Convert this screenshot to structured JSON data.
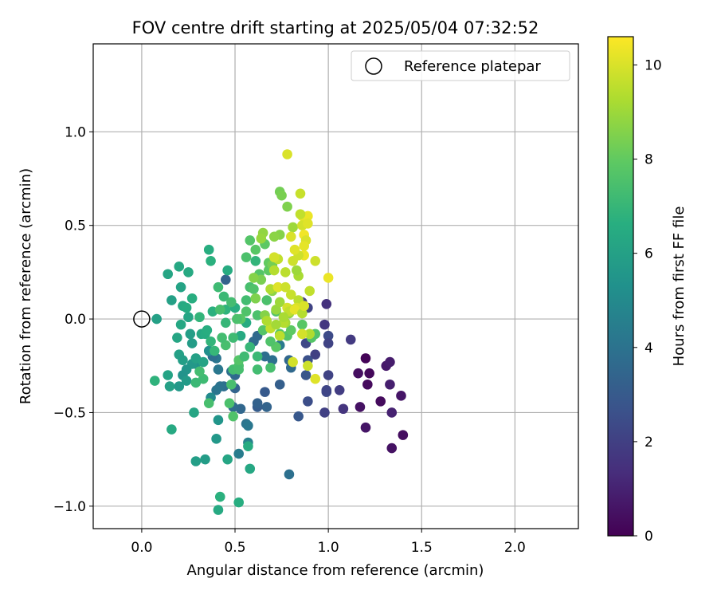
{
  "chart_data": {
    "type": "scatter",
    "title": "FOV centre drift starting at 2025/05/04 07:32:52",
    "xlabel": "Angular distance from reference (arcmin)",
    "ylabel": "Rotation from reference (arcmin)",
    "xlim": [
      -0.26,
      2.34
    ],
    "ylim": [
      -1.12,
      1.47
    ],
    "xticks": [
      0.0,
      0.5,
      1.0,
      1.5,
      2.0
    ],
    "xtick_labels": [
      "0.0",
      "0.5",
      "1.0",
      "1.5",
      "2.0"
    ],
    "yticks": [
      -1.0,
      -0.5,
      0.0,
      0.5,
      1.0
    ],
    "ytick_labels": [
      "−1.0",
      "−0.5",
      "0.0",
      "0.5",
      "1.0"
    ],
    "grid": true,
    "legend": {
      "position": "top-right",
      "entries": [
        "Reference platepar"
      ]
    },
    "reference": {
      "x": 0.0,
      "y": 0.0,
      "label": "Reference platepar"
    },
    "colorbar": {
      "label": "Hours from first FF file",
      "range": [
        0,
        10.6
      ],
      "ticks": [
        0,
        2,
        4,
        6,
        8,
        10
      ],
      "tick_labels": [
        "0",
        "2",
        "4",
        "6",
        "8",
        "10"
      ],
      "colormap": "viridis"
    },
    "points": [
      [
        1.2,
        -0.21,
        0.1
      ],
      [
        1.22,
        -0.29,
        0.2
      ],
      [
        1.21,
        -0.35,
        0.3
      ],
      [
        1.16,
        -0.29,
        0.4
      ],
      [
        1.17,
        -0.47,
        0.5
      ],
      [
        1.2,
        -0.58,
        0.6
      ],
      [
        1.28,
        -0.44,
        0.3
      ],
      [
        1.31,
        -0.25,
        0.7
      ],
      [
        1.33,
        -0.23,
        0.8
      ],
      [
        1.33,
        -0.35,
        0.9
      ],
      [
        1.34,
        -0.5,
        1.0
      ],
      [
        1.34,
        -0.69,
        0.5
      ],
      [
        1.39,
        -0.41,
        0.6
      ],
      [
        1.4,
        -0.62,
        0.4
      ],
      [
        1.12,
        -0.11,
        1.8
      ],
      [
        1.08,
        -0.48,
        1.6
      ],
      [
        1.06,
        -0.38,
        1.9
      ],
      [
        1.0,
        -0.3,
        2.1
      ],
      [
        0.99,
        -0.39,
        2.3
      ],
      [
        0.98,
        -0.5,
        2.0
      ],
      [
        0.99,
        -0.38,
        2.2
      ],
      [
        0.98,
        -0.03,
        1.7
      ],
      [
        0.99,
        0.08,
        1.5
      ],
      [
        1.0,
        -0.09,
        2.4
      ],
      [
        1.0,
        -0.13,
        2.1
      ],
      [
        0.93,
        -0.19,
        2.0
      ],
      [
        0.89,
        -0.22,
        2.6
      ],
      [
        0.88,
        -0.3,
        2.8
      ],
      [
        0.89,
        -0.44,
        2.5
      ],
      [
        0.84,
        -0.52,
        2.9
      ],
      [
        0.88,
        -0.13,
        2.3
      ],
      [
        0.89,
        0.06,
        2.1
      ],
      [
        0.86,
        0.09,
        2.0
      ],
      [
        0.74,
        -0.35,
        3.2
      ],
      [
        0.66,
        -0.39,
        3.0
      ],
      [
        0.67,
        -0.47,
        3.4
      ],
      [
        0.62,
        -0.47,
        3.1
      ],
      [
        0.62,
        -0.45,
        3.3
      ],
      [
        0.53,
        -0.48,
        3.5
      ],
      [
        0.49,
        -0.47,
        3.7
      ],
      [
        0.5,
        -0.37,
        3.4
      ],
      [
        0.5,
        -0.3,
        3.6
      ],
      [
        0.48,
        -0.28,
        3.9
      ],
      [
        0.44,
        -0.36,
        3.8
      ],
      [
        0.42,
        -0.36,
        4.0
      ],
      [
        0.45,
        0.21,
        3.3
      ],
      [
        0.4,
        -0.38,
        4.1
      ],
      [
        0.41,
        -0.27,
        4.2
      ],
      [
        0.4,
        -0.21,
        4.1
      ],
      [
        0.38,
        -0.2,
        3.8
      ],
      [
        0.56,
        -0.56,
        4.0
      ],
      [
        0.57,
        -0.57,
        4.2
      ],
      [
        0.79,
        -0.83,
        3.9
      ],
      [
        0.57,
        -0.66,
        4.6
      ],
      [
        0.52,
        -0.72,
        4.4
      ],
      [
        0.6,
        -0.12,
        3.7
      ],
      [
        0.62,
        -0.09,
        3.6
      ],
      [
        0.66,
        -0.2,
        3.8
      ],
      [
        0.7,
        -0.22,
        3.9
      ],
      [
        0.79,
        -0.22,
        3.5
      ],
      [
        0.8,
        -0.26,
        3.6
      ],
      [
        0.74,
        -0.14,
        4.3
      ],
      [
        0.37,
        -0.42,
        5.0
      ],
      [
        0.41,
        -0.54,
        5.5
      ],
      [
        0.4,
        -0.64,
        5.6
      ],
      [
        0.34,
        -0.75,
        5.8
      ],
      [
        0.29,
        -0.76,
        5.9
      ],
      [
        0.36,
        -0.17,
        5.2
      ],
      [
        0.29,
        -0.24,
        5.3
      ],
      [
        0.27,
        -0.24,
        5.6
      ],
      [
        0.24,
        -0.27,
        5.5
      ],
      [
        0.22,
        -0.3,
        5.4
      ],
      [
        0.24,
        -0.33,
        5.7
      ],
      [
        0.2,
        -0.36,
        5.6
      ],
      [
        0.15,
        -0.36,
        6.0
      ],
      [
        0.14,
        -0.3,
        6.1
      ],
      [
        0.2,
        -0.19,
        6.0
      ],
      [
        0.22,
        -0.22,
        5.9
      ],
      [
        0.19,
        -0.1,
        6.2
      ],
      [
        0.21,
        -0.03,
        6.3
      ],
      [
        0.22,
        0.07,
        6.4
      ],
      [
        0.25,
        0.01,
        6.2
      ],
      [
        0.24,
        0.06,
        6.5
      ],
      [
        0.27,
        0.11,
        6.6
      ],
      [
        0.21,
        0.17,
        6.1
      ],
      [
        0.2,
        0.28,
        6.3
      ],
      [
        0.14,
        0.24,
        6.2
      ],
      [
        0.16,
        0.1,
        6.0
      ],
      [
        0.25,
        0.25,
        6.4
      ],
      [
        0.27,
        -0.13,
        5.8
      ],
      [
        0.29,
        -0.21,
        6.0
      ],
      [
        0.33,
        -0.23,
        6.1
      ],
      [
        0.32,
        -0.08,
        6.3
      ],
      [
        0.34,
        -0.08,
        6.5
      ],
      [
        0.35,
        -0.06,
        6.6
      ],
      [
        0.31,
        0.01,
        6.9
      ],
      [
        0.28,
        -0.5,
        6.2
      ],
      [
        0.16,
        -0.59,
        6.4
      ],
      [
        0.07,
        -0.33,
        6.8
      ],
      [
        0.26,
        -0.08,
        5.9
      ],
      [
        0.08,
        0.0,
        6.0
      ],
      [
        0.36,
        0.37,
        6.6
      ],
      [
        0.37,
        0.31,
        6.7
      ],
      [
        0.46,
        0.26,
        6.5
      ],
      [
        0.38,
        0.04,
        6.7
      ],
      [
        0.37,
        -0.12,
        6.9
      ],
      [
        0.45,
        -0.02,
        7.0
      ],
      [
        0.45,
        0.05,
        6.8
      ],
      [
        0.5,
        0.06,
        6.6
      ],
      [
        0.53,
        -0.09,
        6.4
      ],
      [
        0.56,
        -0.02,
        6.5
      ],
      [
        0.58,
        -0.8,
        6.3
      ],
      [
        0.57,
        -0.68,
        6.5
      ],
      [
        0.52,
        -0.98,
        6.6
      ],
      [
        0.42,
        -0.95,
        6.7
      ],
      [
        0.41,
        -1.02,
        6.4
      ],
      [
        0.61,
        0.31,
        6.9
      ],
      [
        0.46,
        -0.75,
        6.2
      ],
      [
        0.47,
        -0.45,
        7.5
      ],
      [
        0.49,
        -0.52,
        7.6
      ],
      [
        0.48,
        -0.35,
        7.4
      ],
      [
        0.49,
        -0.27,
        7.3
      ],
      [
        0.52,
        -0.25,
        7.5
      ],
      [
        0.52,
        -0.27,
        7.4
      ],
      [
        0.52,
        -0.22,
        7.7
      ],
      [
        0.55,
        -0.2,
        7.2
      ],
      [
        0.58,
        -0.15,
        7.0
      ],
      [
        0.62,
        -0.2,
        7.1
      ],
      [
        0.62,
        -0.27,
        7.3
      ],
      [
        0.69,
        -0.26,
        7.4
      ],
      [
        0.72,
        -0.15,
        7.8
      ],
      [
        0.69,
        -0.12,
        7.6
      ],
      [
        0.65,
        -0.06,
        7.7
      ],
      [
        0.62,
        0.02,
        7.5
      ],
      [
        0.56,
        0.04,
        7.6
      ],
      [
        0.53,
        0.0,
        7.8
      ],
      [
        0.56,
        0.1,
        7.3
      ],
      [
        0.58,
        0.17,
        7.4
      ],
      [
        0.6,
        0.16,
        7.6
      ],
      [
        0.56,
        0.33,
        7.5
      ],
      [
        0.58,
        0.42,
        7.7
      ],
      [
        0.61,
        0.37,
        7.8
      ],
      [
        0.66,
        0.4,
        7.9
      ],
      [
        0.68,
        0.3,
        8.0
      ],
      [
        0.68,
        0.26,
        7.9
      ],
      [
        0.63,
        0.24,
        7.7
      ],
      [
        0.67,
        0.1,
        7.5
      ],
      [
        0.72,
        0.04,
        7.6
      ],
      [
        0.74,
        -0.08,
        7.8
      ],
      [
        0.78,
        -0.09,
        7.7
      ],
      [
        0.8,
        -0.06,
        7.9
      ],
      [
        0.81,
        0.05,
        7.6
      ],
      [
        0.86,
        -0.03,
        7.8
      ],
      [
        0.91,
        -0.1,
        7.7
      ],
      [
        0.93,
        -0.08,
        7.6
      ],
      [
        0.41,
        0.17,
        7.2
      ],
      [
        0.42,
        0.05,
        7.4
      ],
      [
        0.44,
        0.12,
        7.1
      ],
      [
        0.48,
        0.09,
        7.3
      ],
      [
        0.51,
        0.0,
        7.5
      ],
      [
        0.49,
        -0.1,
        7.2
      ],
      [
        0.45,
        -0.14,
        7.4
      ],
      [
        0.43,
        -0.1,
        7.3
      ],
      [
        0.39,
        -0.17,
        7.0
      ],
      [
        0.33,
        -0.32,
        7.2
      ],
      [
        0.31,
        -0.28,
        7.3
      ],
      [
        0.29,
        -0.34,
        7.1
      ],
      [
        0.36,
        -0.45,
        7.4
      ],
      [
        0.74,
        0.68,
        8.3
      ],
      [
        0.75,
        0.66,
        8.4
      ],
      [
        0.78,
        0.6,
        8.5
      ],
      [
        0.74,
        0.45,
        8.6
      ],
      [
        0.71,
        0.44,
        8.7
      ],
      [
        0.65,
        0.46,
        8.8
      ],
      [
        0.81,
        0.49,
        9.0
      ],
      [
        0.64,
        0.43,
        8.9
      ],
      [
        0.7,
        0.15,
        8.7
      ],
      [
        0.72,
        0.05,
        8.9
      ],
      [
        0.74,
        0.09,
        9.0
      ],
      [
        0.77,
        -0.02,
        9.1
      ],
      [
        0.79,
        0.03,
        8.8
      ],
      [
        0.66,
        0.02,
        8.6
      ],
      [
        0.61,
        0.11,
        8.5
      ],
      [
        0.64,
        0.21,
        8.4
      ],
      [
        0.6,
        0.22,
        8.6
      ],
      [
        0.7,
        0.29,
        8.3
      ],
      [
        0.78,
        0.88,
        10.0
      ],
      [
        0.85,
        0.67,
        9.7
      ],
      [
        0.86,
        0.55,
        10.2
      ],
      [
        0.86,
        0.5,
        9.9
      ],
      [
        0.89,
        0.55,
        10.3
      ],
      [
        0.89,
        0.51,
        10.1
      ],
      [
        0.87,
        0.45,
        10.4
      ],
      [
        0.88,
        0.42,
        10.0
      ],
      [
        0.87,
        0.39,
        10.2
      ],
      [
        0.87,
        0.34,
        10.3
      ],
      [
        0.84,
        0.34,
        9.8
      ],
      [
        0.82,
        0.37,
        10.1
      ],
      [
        0.8,
        0.44,
        10.0
      ],
      [
        0.81,
        0.31,
        9.8
      ],
      [
        0.77,
        0.25,
        9.5
      ],
      [
        0.73,
        0.32,
        9.6
      ],
      [
        0.71,
        0.26,
        9.4
      ],
      [
        0.69,
        0.16,
        9.3
      ],
      [
        0.73,
        0.17,
        10.1
      ],
      [
        0.77,
        0.17,
        9.8
      ],
      [
        0.8,
        0.13,
        9.7
      ],
      [
        0.84,
        0.1,
        9.5
      ],
      [
        0.83,
        0.06,
        10.0
      ],
      [
        0.78,
        0.06,
        9.9
      ],
      [
        0.79,
        0.04,
        9.6
      ],
      [
        0.82,
        0.05,
        10.2
      ],
      [
        0.86,
        0.03,
        9.4
      ],
      [
        0.87,
        0.07,
        10.0
      ],
      [
        0.9,
        0.15,
        9.6
      ],
      [
        0.93,
        0.31,
        9.8
      ],
      [
        1.0,
        0.22,
        10.3
      ],
      [
        0.84,
        0.23,
        9.2
      ],
      [
        0.83,
        0.26,
        9.0
      ],
      [
        0.74,
        -0.09,
        9.5
      ],
      [
        0.76,
        -0.02,
        9.4
      ],
      [
        0.69,
        -0.05,
        9.6
      ],
      [
        0.67,
        -0.01,
        9.3
      ],
      [
        0.72,
        -0.03,
        9.1
      ],
      [
        0.76,
        0.01,
        9.2
      ],
      [
        0.9,
        -0.08,
        9.3
      ],
      [
        0.86,
        -0.08,
        9.9
      ],
      [
        0.89,
        -0.25,
        9.8
      ],
      [
        0.93,
        -0.32,
        10.1
      ],
      [
        0.81,
        -0.23,
        9.9
      ],
      [
        0.71,
        0.33,
        9.9
      ],
      [
        0.85,
        0.56,
        9.6
      ]
    ]
  }
}
